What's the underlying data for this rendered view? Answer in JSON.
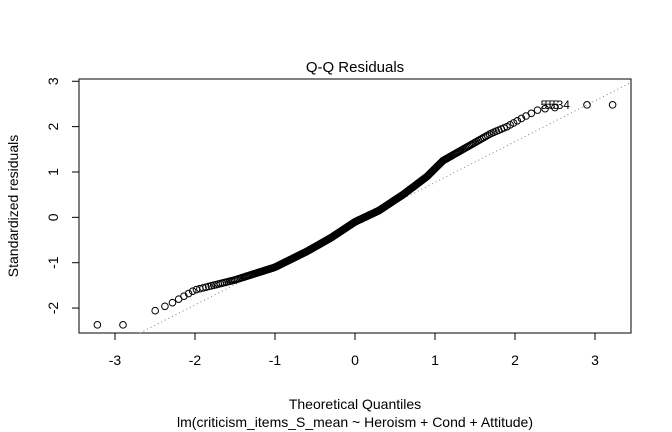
{
  "chart_data": {
    "type": "scatter",
    "title": "Q-Q Residuals",
    "xlabel": "Theoretical Quantiles",
    "subtitle": "lm(criticism_items_S_mean ~ Heroism + Cond + Attitude)",
    "ylabel": "Standardized residuals",
    "xlim": [
      -3.45,
      3.45
    ],
    "ylim": [
      -2.55,
      3.05
    ],
    "x_ticks": [
      -3,
      -2,
      -1,
      0,
      1,
      2,
      3
    ],
    "y_ticks": [
      -2,
      -1,
      0,
      1,
      2,
      3
    ],
    "grid": false,
    "legend": "none",
    "reference_line": {
      "slope": 0.9,
      "intercept": -0.13,
      "style": "dotted",
      "color": "#808080"
    },
    "point_labels": [
      "5",
      "5",
      "5",
      "5",
      "34"
    ],
    "n_points": 400,
    "point_count_note": "",
    "anchors": [
      [
        -3.22,
        -2.37
      ],
      [
        -2.9,
        -2.37
      ],
      [
        -2.65,
        -2.18
      ],
      [
        -2.3,
        -1.9
      ],
      [
        -2.0,
        -1.6
      ],
      [
        -1.5,
        -1.38
      ],
      [
        -1.0,
        -1.1
      ],
      [
        -0.6,
        -0.75
      ],
      [
        -0.3,
        -0.45
      ],
      [
        0.0,
        -0.1
      ],
      [
        0.3,
        0.15
      ],
      [
        0.6,
        0.5
      ],
      [
        0.9,
        0.9
      ],
      [
        1.1,
        1.25
      ],
      [
        1.4,
        1.55
      ],
      [
        1.7,
        1.85
      ],
      [
        1.9,
        2.0
      ],
      [
        2.1,
        2.2
      ],
      [
        2.3,
        2.38
      ],
      [
        2.5,
        2.42
      ],
      [
        2.9,
        2.48
      ],
      [
        3.22,
        2.48
      ]
    ],
    "extremes": [
      [
        -3.22,
        -2.37
      ],
      [
        -2.9,
        -2.37
      ],
      [
        2.9,
        2.48
      ],
      [
        3.22,
        2.48
      ]
    ]
  }
}
